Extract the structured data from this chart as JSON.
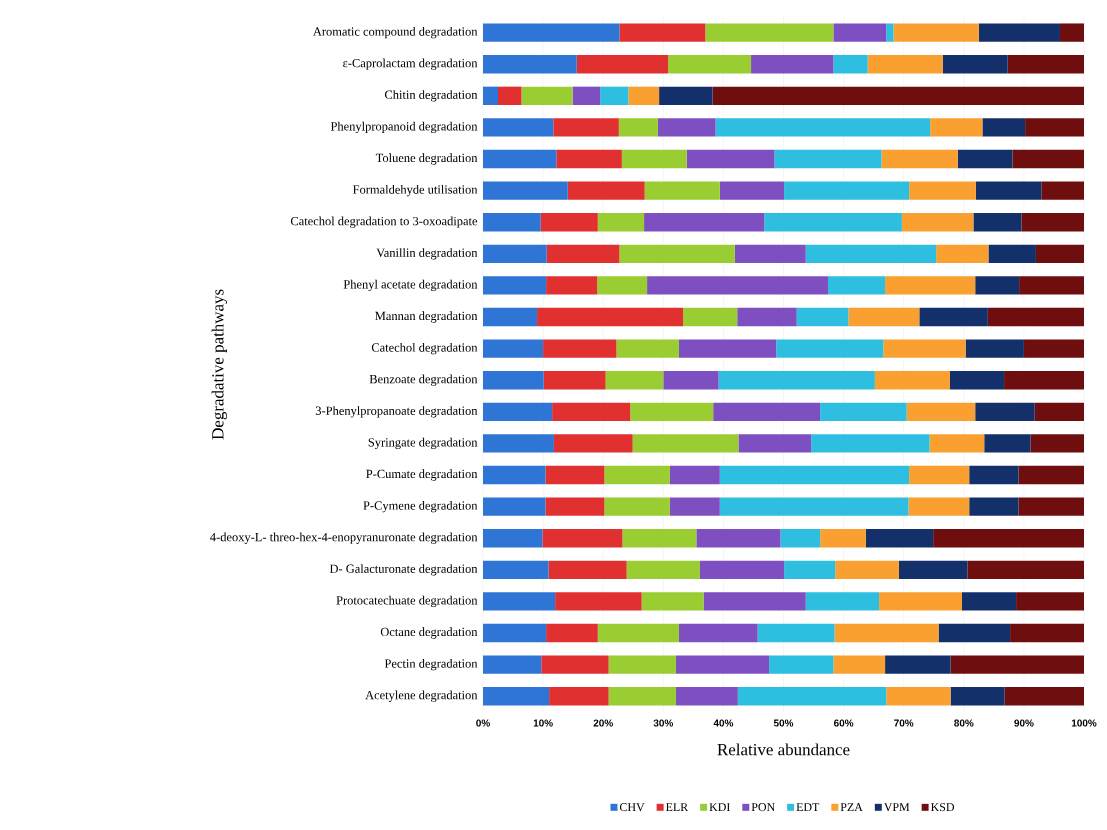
{
  "chart_data": {
    "type": "bar",
    "orientation": "horizontal",
    "stacked": true,
    "xlabel": "Relative abundance",
    "ylabel": "Degradative pathways",
    "categories": [
      "Aromatic compound degradation",
      "ε-Caprolactam degradation",
      "Chitin degradation",
      "Phenylpropanoid degradation",
      "Toluene degradation",
      "Formaldehyde utilisation",
      "Catechol degradation to 3-oxoadipate",
      "Vanillin degradation",
      "Phenyl acetate degradation",
      "Mannan degradation",
      "Catechol degradation",
      "Benzoate degradation",
      "3-Phenylpropanoate degradation",
      "Syringate degradation",
      "P-Cumate degradation",
      "P-Cymene degradation",
      "4-deoxy-L- threo-hex-4-enopyranuronate degradation",
      "D- Galacturonate degradation",
      "Protocatechuate degradation",
      "Octane degradation",
      "Pectin degradation",
      "Acetylene degradation"
    ],
    "series": [
      {
        "name": "CHV",
        "color": "#2e75d6",
        "values": [
          22.7,
          15.6,
          2.5,
          11.7,
          12.2,
          14.1,
          9.6,
          10.6,
          10.5,
          9.0,
          10.0,
          10.1,
          11.5,
          11.8,
          10.4,
          10.4,
          9.9,
          10.9,
          12.0,
          10.5,
          9.7,
          11.0
        ]
      },
      {
        "name": "ELR",
        "color": "#e03030",
        "values": [
          14.3,
          15.2,
          3.9,
          10.9,
          10.9,
          12.8,
          9.5,
          12.1,
          8.5,
          24.3,
          12.2,
          10.3,
          13.0,
          13.1,
          9.8,
          9.8,
          13.3,
          13.0,
          14.4,
          8.6,
          11.2,
          9.9
        ]
      },
      {
        "name": "KDI",
        "color": "#9acd32",
        "values": [
          21.3,
          13.8,
          8.5,
          6.5,
          10.8,
          12.5,
          7.7,
          19.2,
          8.3,
          9.0,
          10.4,
          9.6,
          13.8,
          17.6,
          10.9,
          10.9,
          12.3,
          12.2,
          10.3,
          13.5,
          11.2,
          11.2
        ]
      },
      {
        "name": "PON",
        "color": "#7e4fc0",
        "values": [
          8.8,
          13.7,
          4.6,
          9.6,
          14.6,
          10.7,
          20.0,
          11.8,
          30.1,
          9.9,
          16.2,
          9.2,
          17.8,
          12.1,
          8.3,
          8.3,
          14.0,
          14.0,
          17.0,
          13.1,
          15.5,
          10.3
        ]
      },
      {
        "name": "EDT",
        "color": "#2ebfe0",
        "values": [
          1.2,
          5.7,
          4.7,
          35.7,
          17.8,
          20.8,
          22.9,
          21.7,
          9.5,
          8.6,
          17.8,
          26.0,
          14.4,
          19.7,
          31.5,
          31.4,
          6.6,
          8.5,
          12.2,
          12.8,
          10.7,
          24.7
        ]
      },
      {
        "name": "PZA",
        "color": "#f9a030",
        "values": [
          14.2,
          12.5,
          5.1,
          8.7,
          12.7,
          11.1,
          11.9,
          8.7,
          15.0,
          11.8,
          13.7,
          12.5,
          11.4,
          9.1,
          10.0,
          10.1,
          7.6,
          10.6,
          13.8,
          17.3,
          8.6,
          10.7
        ]
      },
      {
        "name": "VPM",
        "color": "#13306b",
        "values": [
          13.5,
          10.8,
          8.9,
          7.1,
          9.1,
          10.9,
          8.0,
          7.9,
          7.3,
          11.4,
          9.7,
          9.0,
          9.9,
          7.7,
          8.2,
          8.2,
          11.2,
          11.4,
          9.0,
          11.9,
          10.9,
          9.0
        ]
      },
      {
        "name": "KSD",
        "color": "#6e0e0e",
        "values": [
          4.0,
          12.7,
          61.8,
          9.8,
          11.9,
          7.1,
          10.4,
          8.0,
          10.8,
          16.0,
          10.0,
          13.3,
          8.2,
          8.9,
          10.9,
          10.9,
          25.1,
          19.4,
          11.3,
          12.3,
          22.2,
          13.2
        ]
      }
    ],
    "xlim": [
      0,
      100
    ],
    "xticks": [
      {
        "value": 0,
        "label": "0%"
      },
      {
        "value": 10,
        "label": "10%"
      },
      {
        "value": 20,
        "label": "20%"
      },
      {
        "value": 30,
        "label": "30%"
      },
      {
        "value": 40,
        "label": "40%"
      },
      {
        "value": 50,
        "label": "50%"
      },
      {
        "value": 60,
        "label": "60%"
      },
      {
        "value": 70,
        "label": "70%"
      },
      {
        "value": 80,
        "label": "80%"
      },
      {
        "value": 90,
        "label": "90%"
      },
      {
        "value": 100,
        "label": "100%"
      }
    ],
    "grid": "x",
    "legend": "bottom"
  }
}
